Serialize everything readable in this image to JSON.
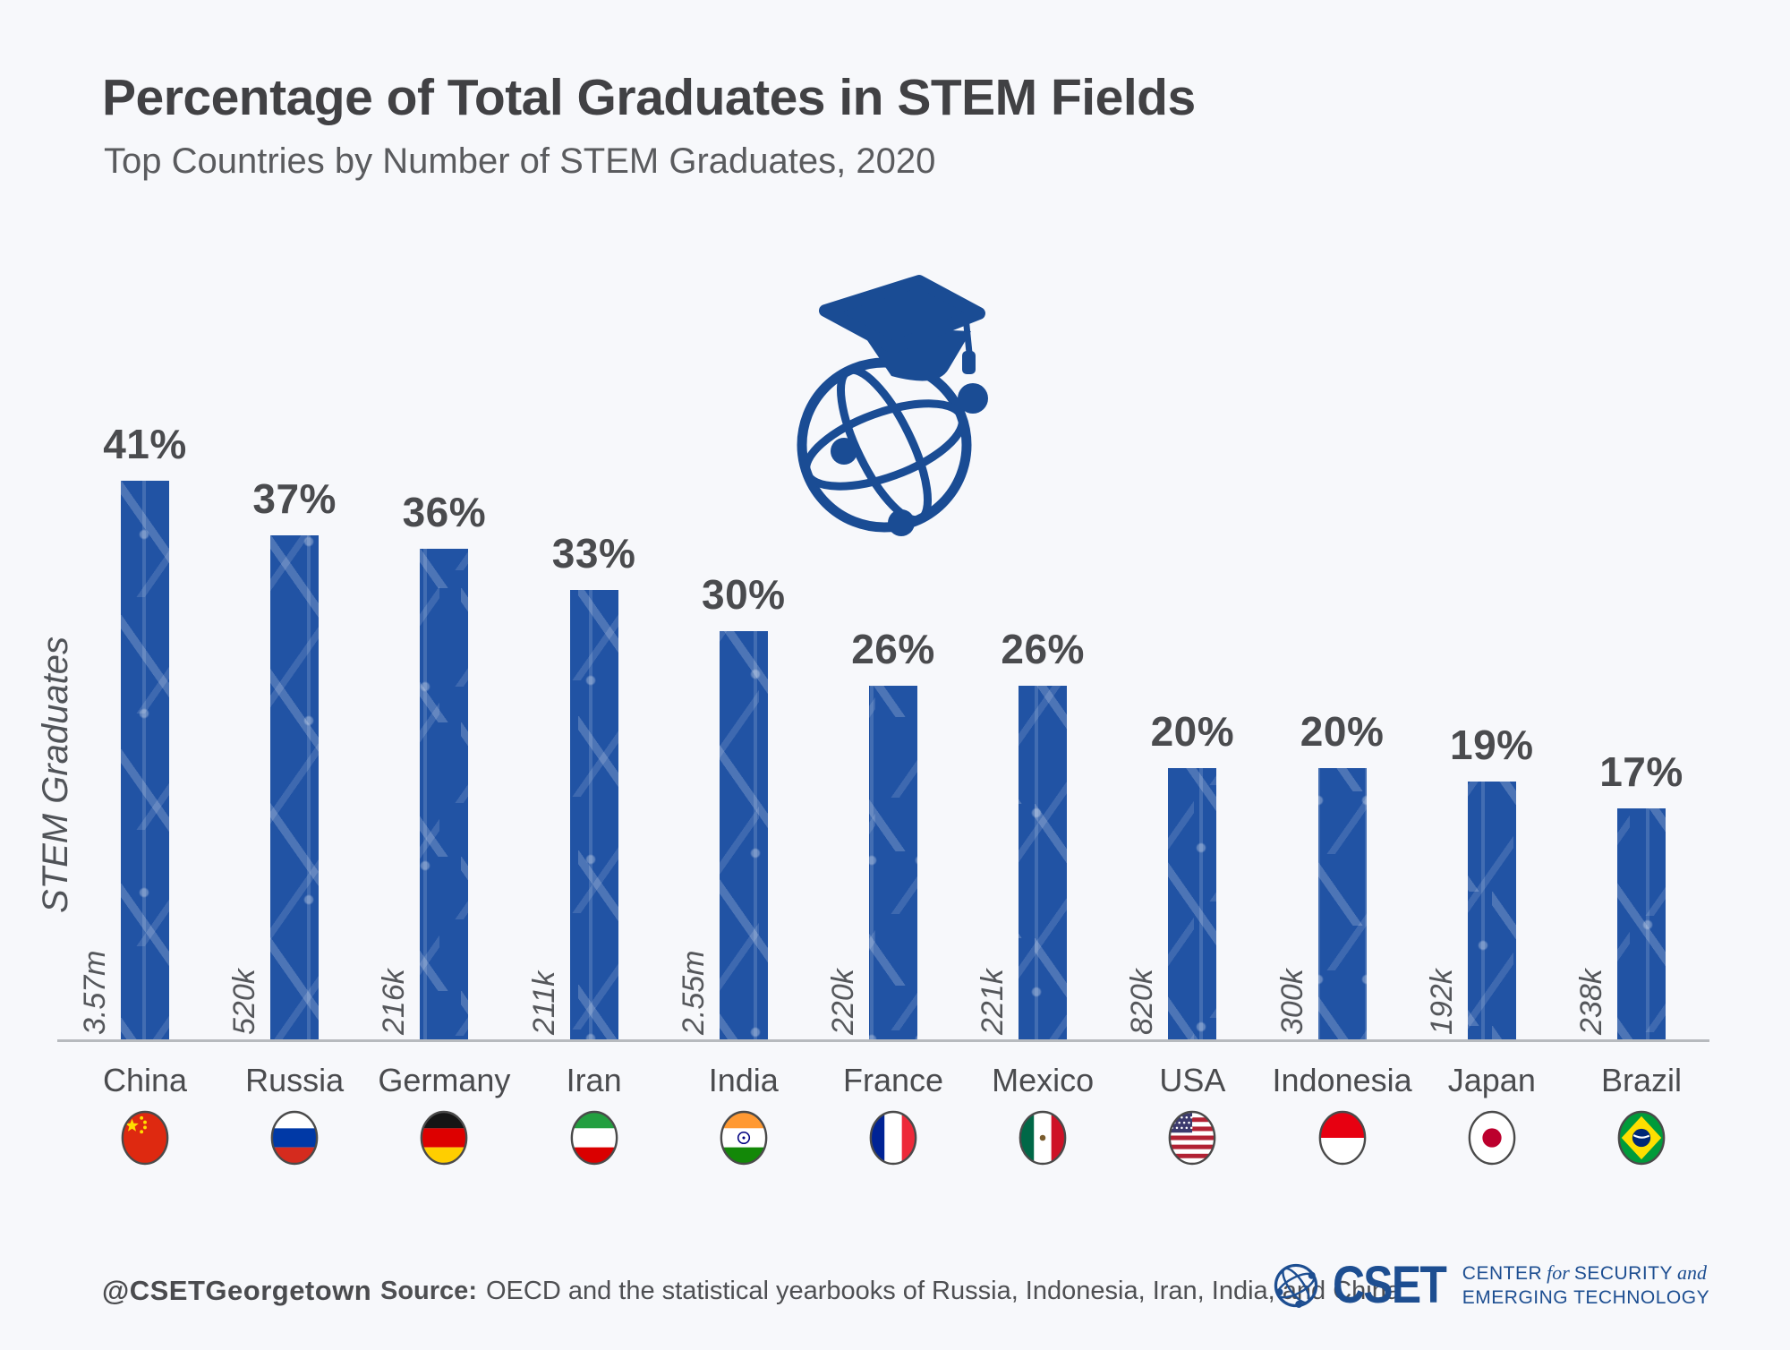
{
  "chart_data": {
    "type": "bar",
    "title": "Percentage of Total Graduates in STEM Fields",
    "subtitle": "Top Countries by Number of STEM Graduates, 2020",
    "ylabel": "STEM Graduates",
    "xlabel": "",
    "categories": [
      "China",
      "Russia",
      "Germany",
      "Iran",
      "India",
      "France",
      "Mexico",
      "USA",
      "Indonesia",
      "Japan",
      "Brazil"
    ],
    "values": [
      41,
      37,
      36,
      33,
      30,
      26,
      26,
      20,
      20,
      19,
      17
    ],
    "bar_value_labels": [
      "41%",
      "37%",
      "36%",
      "33%",
      "30%",
      "26%",
      "26%",
      "20%",
      "20%",
      "19%",
      "17%"
    ],
    "bar_total_labels": [
      "3.57m",
      "520k",
      "216k",
      "211k",
      "2.55m",
      "220k",
      "221k",
      "820k",
      "300k",
      "192k",
      "238k"
    ],
    "flags": [
      "china",
      "russia",
      "germany",
      "iran",
      "india",
      "france",
      "mexico",
      "usa",
      "indonesia",
      "japan",
      "brazil"
    ],
    "ylim": [
      0,
      45
    ],
    "grid": false,
    "legend": false,
    "bar_color": "#2153a4",
    "bar_pattern": "circuit-board"
  },
  "hero_icon": "graduation-cap-globe-icon",
  "colors": {
    "background": "#f7f8fb",
    "bar_blue": "#2153a4",
    "icon_blue": "#1a4c94",
    "logo_blue": "#1d4e91",
    "text_dark": "#414144",
    "text_gray": "#5a5b5e",
    "axis_gray": "#b7babe"
  },
  "footer": {
    "handle": "@CSETGeorgetown",
    "source_label": "Source:",
    "source_text": "OECD and the statistical yearbooks of Russia, Indonesia, Iran, India, and China",
    "logo": {
      "acronym": "CSET",
      "l1w1": "CENTER",
      "l1w2": "for",
      "l1w3": "SECURITY",
      "l1w4": "and",
      "line2": "EMERGING TECHNOLOGY"
    }
  }
}
